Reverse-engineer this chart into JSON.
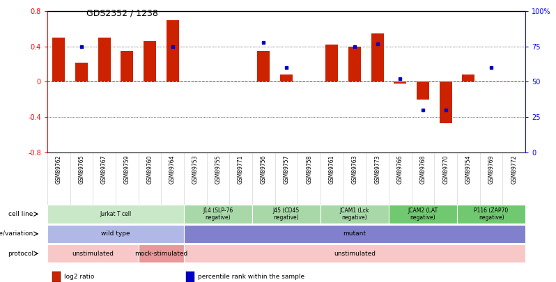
{
  "title": "GDS2352 / 1238",
  "samples": [
    "GSM89762",
    "GSM89765",
    "GSM89767",
    "GSM89759",
    "GSM89760",
    "GSM89764",
    "GSM89753",
    "GSM89755",
    "GSM89771",
    "GSM89756",
    "GSM89757",
    "GSM89758",
    "GSM89761",
    "GSM89763",
    "GSM89773",
    "GSM89766",
    "GSM89768",
    "GSM89770",
    "GSM89754",
    "GSM89769",
    "GSM89772"
  ],
  "log2_ratio": [
    0.5,
    0.22,
    0.5,
    0.35,
    0.46,
    0.7,
    0.0,
    0.0,
    0.0,
    0.35,
    0.08,
    0.0,
    0.42,
    0.4,
    0.55,
    -0.02,
    -0.2,
    -0.47,
    0.08,
    0.0,
    0.0
  ],
  "percentile_rank_pct": [
    null,
    75,
    null,
    null,
    null,
    75,
    null,
    null,
    null,
    78,
    60,
    null,
    null,
    75,
    77,
    52,
    30,
    30,
    null,
    60,
    null
  ],
  "ylim": [
    -0.8,
    0.8
  ],
  "yticks_left": [
    -0.8,
    -0.4,
    0.0,
    0.4,
    0.8
  ],
  "yticks_right": [
    0,
    25,
    50,
    75,
    100
  ],
  "bar_color": "#cc2200",
  "dot_color": "#0000cc",
  "cell_line_groups": [
    {
      "label": "Jurkat T cell",
      "start": 0,
      "end": 5,
      "color": "#c8e8c8"
    },
    {
      "label": "J14 (SLP-76\nnegative)",
      "start": 6,
      "end": 8,
      "color": "#a8d8a8"
    },
    {
      "label": "J45 (CD45\nnegative)",
      "start": 9,
      "end": 11,
      "color": "#a8d8a8"
    },
    {
      "label": "JCAM1 (Lck\nnegative)",
      "start": 12,
      "end": 14,
      "color": "#a8d8a8"
    },
    {
      "label": "JCAM2 (LAT\nnegative)",
      "start": 15,
      "end": 17,
      "color": "#70c870"
    },
    {
      "label": "P116 (ZAP70\nnegative)",
      "start": 18,
      "end": 20,
      "color": "#70c870"
    }
  ],
  "genotype_groups": [
    {
      "label": "wild type",
      "start": 0,
      "end": 5,
      "color": "#b0b8e8"
    },
    {
      "label": "mutant",
      "start": 6,
      "end": 20,
      "color": "#8080cc"
    }
  ],
  "protocol_groups": [
    {
      "label": "unstimulated",
      "start": 0,
      "end": 3,
      "color": "#f8c8c8"
    },
    {
      "label": "mock-stimulated",
      "start": 4,
      "end": 5,
      "color": "#e89898"
    },
    {
      "label": "unstimulated",
      "start": 6,
      "end": 20,
      "color": "#f8c8c8"
    }
  ],
  "row_labels": [
    "cell line",
    "genotype/variation",
    "protocol"
  ],
  "legend_items": [
    {
      "color": "#cc2200",
      "label": "log2 ratio"
    },
    {
      "color": "#0000cc",
      "label": "percentile rank within the sample"
    }
  ]
}
